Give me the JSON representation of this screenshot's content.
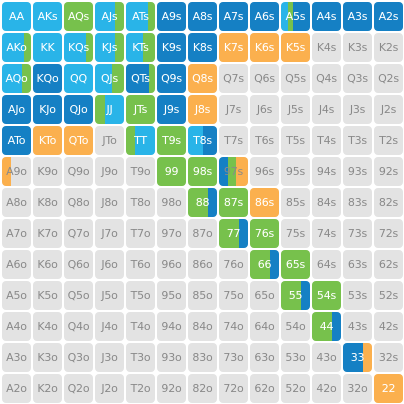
{
  "colors": {
    "dark_blue": "#1580c4",
    "light_blue": "#29b4e8",
    "green": "#77c14c",
    "orange": "#fbb04e",
    "empty": "#e3e3e3"
  },
  "rows": [
    [
      {
        "label": "AA",
        "mix": [
          [
            "light_blue",
            1
          ]
        ]
      },
      {
        "label": "AKs",
        "mix": [
          [
            "light_blue",
            1
          ]
        ]
      },
      {
        "label": "AQs",
        "mix": [
          [
            "green",
            1
          ]
        ]
      },
      {
        "label": "AJs",
        "mix": [
          [
            "light_blue",
            0.7
          ],
          [
            "green",
            0.3
          ]
        ]
      },
      {
        "label": "ATs",
        "mix": [
          [
            "light_blue",
            0.75
          ],
          [
            "green",
            0.25
          ]
        ]
      },
      {
        "label": "A9s",
        "mix": [
          [
            "dark_blue",
            1
          ]
        ]
      },
      {
        "label": "A8s",
        "mix": [
          [
            "dark_blue",
            1
          ]
        ]
      },
      {
        "label": "A7s",
        "mix": [
          [
            "dark_blue",
            1
          ]
        ]
      },
      {
        "label": "A6s",
        "mix": [
          [
            "dark_blue",
            1
          ]
        ]
      },
      {
        "label": "A5s",
        "mix": [
          [
            "light_blue",
            0.25
          ],
          [
            "green",
            0.15
          ],
          [
            "dark_blue",
            0.6
          ]
        ]
      },
      {
        "label": "A4s",
        "mix": [
          [
            "dark_blue",
            1
          ]
        ]
      },
      {
        "label": "A3s",
        "mix": [
          [
            "dark_blue",
            1
          ]
        ]
      },
      {
        "label": "A2s",
        "mix": [
          [
            "dark_blue",
            1
          ]
        ]
      }
    ],
    [
      {
        "label": "AKo",
        "mix": [
          [
            "light_blue",
            0.75
          ],
          [
            "green",
            0.25
          ]
        ]
      },
      {
        "label": "KK",
        "mix": [
          [
            "light_blue",
            1
          ]
        ]
      },
      {
        "label": "KQs",
        "mix": [
          [
            "light_blue",
            0.75
          ],
          [
            "green",
            0.25
          ]
        ]
      },
      {
        "label": "KJs",
        "mix": [
          [
            "light_blue",
            0.7
          ],
          [
            "green",
            0.3
          ]
        ]
      },
      {
        "label": "KTs",
        "mix": [
          [
            "light_blue",
            0.6
          ],
          [
            "green",
            0.4
          ]
        ]
      },
      {
        "label": "K9s",
        "mix": [
          [
            "dark_blue",
            1
          ]
        ]
      },
      {
        "label": "K8s",
        "mix": [
          [
            "dark_blue",
            1
          ]
        ]
      },
      {
        "label": "K7s",
        "mix": [
          [
            "orange",
            1
          ]
        ]
      },
      {
        "label": "K6s",
        "mix": [
          [
            "orange",
            1
          ]
        ]
      },
      {
        "label": "K5s",
        "mix": [
          [
            "orange",
            1
          ]
        ]
      },
      {
        "label": "K4s",
        "mix": []
      },
      {
        "label": "K3s",
        "mix": []
      },
      {
        "label": "K2s",
        "mix": []
      }
    ],
    [
      {
        "label": "AQo",
        "mix": [
          [
            "light_blue",
            0.7
          ],
          [
            "green",
            0.3
          ]
        ]
      },
      {
        "label": "KQo",
        "mix": [
          [
            "dark_blue",
            1
          ]
        ]
      },
      {
        "label": "QQ",
        "mix": [
          [
            "light_blue",
            1
          ]
        ]
      },
      {
        "label": "QJs",
        "mix": [
          [
            "light_blue",
            0.6
          ],
          [
            "green",
            0.4
          ]
        ]
      },
      {
        "label": "QTs",
        "mix": [
          [
            "dark_blue",
            0.8
          ],
          [
            "green",
            0.2
          ]
        ]
      },
      {
        "label": "Q9s",
        "mix": [
          [
            "dark_blue",
            1
          ]
        ]
      },
      {
        "label": "Q8s",
        "mix": [
          [
            "orange",
            1
          ]
        ]
      },
      {
        "label": "Q7s",
        "mix": []
      },
      {
        "label": "Q6s",
        "mix": []
      },
      {
        "label": "Q5s",
        "mix": []
      },
      {
        "label": "Q4s",
        "mix": []
      },
      {
        "label": "Q3s",
        "mix": []
      },
      {
        "label": "Q2s",
        "mix": []
      }
    ],
    [
      {
        "label": "AJo",
        "mix": [
          [
            "dark_blue",
            1
          ]
        ]
      },
      {
        "label": "KJo",
        "mix": [
          [
            "dark_blue",
            1
          ]
        ]
      },
      {
        "label": "QJo",
        "mix": [
          [
            "dark_blue",
            1
          ]
        ]
      },
      {
        "label": "JJ",
        "mix": [
          [
            "green",
            0.35
          ],
          [
            "light_blue",
            0.65
          ]
        ]
      },
      {
        "label": "JTs",
        "mix": [
          [
            "green",
            1
          ]
        ]
      },
      {
        "label": "J9s",
        "mix": [
          [
            "dark_blue",
            1
          ]
        ]
      },
      {
        "label": "J8s",
        "mix": [
          [
            "orange",
            1
          ]
        ]
      },
      {
        "label": "J7s",
        "mix": []
      },
      {
        "label": "J6s",
        "mix": []
      },
      {
        "label": "J5s",
        "mix": []
      },
      {
        "label": "J4s",
        "mix": []
      },
      {
        "label": "J3s",
        "mix": []
      },
      {
        "label": "J2s",
        "mix": []
      }
    ],
    [
      {
        "label": "ATo",
        "mix": [
          [
            "dark_blue",
            1
          ]
        ]
      },
      {
        "label": "KTo",
        "mix": [
          [
            "orange",
            1
          ]
        ]
      },
      {
        "label": "QTo",
        "mix": [
          [
            "orange",
            1
          ]
        ]
      },
      {
        "label": "JTo",
        "mix": []
      },
      {
        "label": "TT",
        "mix": [
          [
            "green",
            0.3
          ],
          [
            "light_blue",
            0.7
          ]
        ]
      },
      {
        "label": "T9s",
        "mix": [
          [
            "green",
            1
          ]
        ]
      },
      {
        "label": "T8s",
        "mix": [
          [
            "light_blue",
            0.5
          ],
          [
            "dark_blue",
            0.5
          ]
        ]
      },
      {
        "label": "T7s",
        "mix": []
      },
      {
        "label": "T6s",
        "mix": []
      },
      {
        "label": "T5s",
        "mix": []
      },
      {
        "label": "T4s",
        "mix": []
      },
      {
        "label": "T3s",
        "mix": []
      },
      {
        "label": "T2s",
        "mix": []
      }
    ],
    [
      {
        "label": "A9o",
        "mix": [
          [
            "orange",
            0.3
          ]
        ]
      },
      {
        "label": "K9o",
        "mix": []
      },
      {
        "label": "Q9o",
        "mix": []
      },
      {
        "label": "J9o",
        "mix": []
      },
      {
        "label": "T9o",
        "mix": []
      },
      {
        "label": "99",
        "mix": [
          [
            "green",
            1
          ]
        ]
      },
      {
        "label": "98s",
        "mix": [
          [
            "green",
            1
          ]
        ]
      },
      {
        "label": "97s",
        "mix": [
          [
            "dark_blue",
            0.3
          ],
          [
            "green",
            0.3
          ],
          [
            "orange",
            0.4
          ]
        ]
      },
      {
        "label": "96s",
        "mix": []
      },
      {
        "label": "95s",
        "mix": []
      },
      {
        "label": "94s",
        "mix": []
      },
      {
        "label": "93s",
        "mix": []
      },
      {
        "label": "92s",
        "mix": []
      }
    ],
    [
      {
        "label": "A8o",
        "mix": []
      },
      {
        "label": "K8o",
        "mix": []
      },
      {
        "label": "Q8o",
        "mix": []
      },
      {
        "label": "J8o",
        "mix": []
      },
      {
        "label": "T8o",
        "mix": []
      },
      {
        "label": "98o",
        "mix": []
      },
      {
        "label": "88",
        "mix": [
          [
            "green",
            0.7
          ],
          [
            "dark_blue",
            0.3
          ]
        ]
      },
      {
        "label": "87s",
        "mix": [
          [
            "green",
            1
          ]
        ]
      },
      {
        "label": "86s",
        "mix": [
          [
            "orange",
            1
          ]
        ]
      },
      {
        "label": "85s",
        "mix": []
      },
      {
        "label": "84s",
        "mix": []
      },
      {
        "label": "83s",
        "mix": []
      },
      {
        "label": "82s",
        "mix": []
      }
    ],
    [
      {
        "label": "A7o",
        "mix": []
      },
      {
        "label": "K7o",
        "mix": []
      },
      {
        "label": "Q7o",
        "mix": []
      },
      {
        "label": "J7o",
        "mix": []
      },
      {
        "label": "T7o",
        "mix": []
      },
      {
        "label": "97o",
        "mix": []
      },
      {
        "label": "87o",
        "mix": []
      },
      {
        "label": "77",
        "mix": [
          [
            "green",
            0.7
          ],
          [
            "dark_blue",
            0.3
          ]
        ]
      },
      {
        "label": "76s",
        "mix": [
          [
            "green",
            1
          ]
        ]
      },
      {
        "label": "75s",
        "mix": []
      },
      {
        "label": "74s",
        "mix": []
      },
      {
        "label": "73s",
        "mix": []
      },
      {
        "label": "72s",
        "mix": []
      }
    ],
    [
      {
        "label": "A6o",
        "mix": []
      },
      {
        "label": "K6o",
        "mix": []
      },
      {
        "label": "Q6o",
        "mix": []
      },
      {
        "label": "J6o",
        "mix": []
      },
      {
        "label": "T6o",
        "mix": []
      },
      {
        "label": "96o",
        "mix": []
      },
      {
        "label": "86o",
        "mix": []
      },
      {
        "label": "76o",
        "mix": []
      },
      {
        "label": "66",
        "mix": [
          [
            "green",
            0.7
          ],
          [
            "dark_blue",
            0.3
          ]
        ]
      },
      {
        "label": "65s",
        "mix": [
          [
            "green",
            1
          ]
        ]
      },
      {
        "label": "64s",
        "mix": []
      },
      {
        "label": "63s",
        "mix": []
      },
      {
        "label": "62s",
        "mix": []
      }
    ],
    [
      {
        "label": "A5o",
        "mix": []
      },
      {
        "label": "K5o",
        "mix": []
      },
      {
        "label": "Q5o",
        "mix": []
      },
      {
        "label": "J5o",
        "mix": []
      },
      {
        "label": "T5o",
        "mix": []
      },
      {
        "label": "95o",
        "mix": []
      },
      {
        "label": "85o",
        "mix": []
      },
      {
        "label": "75o",
        "mix": []
      },
      {
        "label": "65o",
        "mix": []
      },
      {
        "label": "55",
        "mix": [
          [
            "green",
            0.7
          ],
          [
            "dark_blue",
            0.3
          ]
        ]
      },
      {
        "label": "54s",
        "mix": [
          [
            "green",
            1
          ]
        ]
      },
      {
        "label": "53s",
        "mix": []
      },
      {
        "label": "52s",
        "mix": []
      }
    ],
    [
      {
        "label": "A4o",
        "mix": []
      },
      {
        "label": "K4o",
        "mix": []
      },
      {
        "label": "Q4o",
        "mix": []
      },
      {
        "label": "J4o",
        "mix": []
      },
      {
        "label": "T4o",
        "mix": []
      },
      {
        "label": "94o",
        "mix": []
      },
      {
        "label": "84o",
        "mix": []
      },
      {
        "label": "74o",
        "mix": []
      },
      {
        "label": "64o",
        "mix": []
      },
      {
        "label": "54o",
        "mix": []
      },
      {
        "label": "44",
        "mix": [
          [
            "green",
            0.7
          ],
          [
            "dark_blue",
            0.3
          ]
        ]
      },
      {
        "label": "43s",
        "mix": []
      },
      {
        "label": "42s",
        "mix": []
      }
    ],
    [
      {
        "label": "A3o",
        "mix": []
      },
      {
        "label": "K3o",
        "mix": []
      },
      {
        "label": "Q3o",
        "mix": []
      },
      {
        "label": "J3o",
        "mix": []
      },
      {
        "label": "T3o",
        "mix": []
      },
      {
        "label": "93o",
        "mix": []
      },
      {
        "label": "83o",
        "mix": []
      },
      {
        "label": "73o",
        "mix": []
      },
      {
        "label": "63o",
        "mix": []
      },
      {
        "label": "53o",
        "mix": []
      },
      {
        "label": "43o",
        "mix": []
      },
      {
        "label": "33",
        "mix": [
          [
            "dark_blue",
            0.7
          ],
          [
            "orange",
            0.3
          ]
        ]
      },
      {
        "label": "32s",
        "mix": []
      }
    ],
    [
      {
        "label": "A2o",
        "mix": []
      },
      {
        "label": "K2o",
        "mix": []
      },
      {
        "label": "Q2o",
        "mix": []
      },
      {
        "label": "J2o",
        "mix": []
      },
      {
        "label": "T2o",
        "mix": []
      },
      {
        "label": "92o",
        "mix": []
      },
      {
        "label": "82o",
        "mix": []
      },
      {
        "label": "72o",
        "mix": []
      },
      {
        "label": "62o",
        "mix": []
      },
      {
        "label": "52o",
        "mix": []
      },
      {
        "label": "42o",
        "mix": []
      },
      {
        "label": "32o",
        "mix": []
      },
      {
        "label": "22",
        "mix": [
          [
            "orange",
            1
          ]
        ]
      }
    ]
  ]
}
